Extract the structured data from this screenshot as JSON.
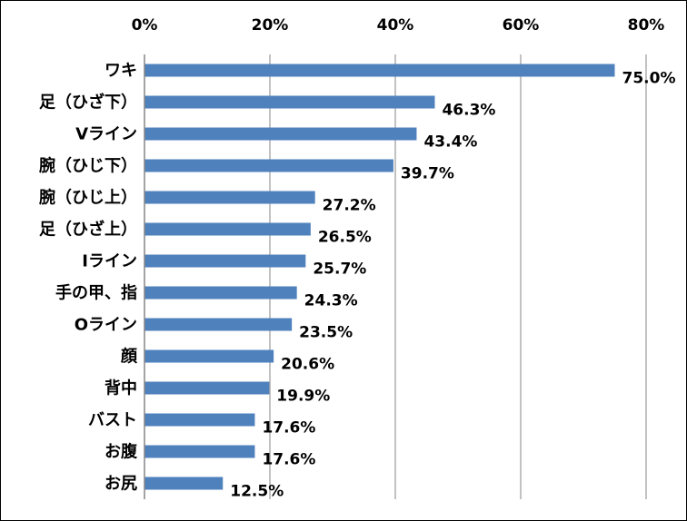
{
  "chart_data": {
    "type": "bar",
    "orientation": "horizontal",
    "title": "",
    "xlabel": "",
    "ylabel": "",
    "xlim": [
      0,
      80
    ],
    "x_ticks": [
      "0%",
      "20%",
      "40%",
      "60%",
      "80%"
    ],
    "x_tick_values": [
      0,
      20,
      40,
      60,
      80
    ],
    "axis_position": "top",
    "grid": true,
    "legend": "none",
    "bar_color": "#4F81BD",
    "categories": [
      "ワキ",
      "足（ひざ下）",
      "Vライン",
      "腕（ひじ下）",
      "腕（ひじ上）",
      "足（ひざ上）",
      "Iライン",
      "手の甲、指",
      "Oライン",
      "顔",
      "背中",
      "バスト",
      "お腹",
      "お尻"
    ],
    "values": [
      75.0,
      46.3,
      43.4,
      39.7,
      27.2,
      26.5,
      25.7,
      24.3,
      23.5,
      20.6,
      19.9,
      17.6,
      17.6,
      12.5
    ],
    "value_labels": [
      "75.0%",
      "46.3%",
      "43.4%",
      "39.7%",
      "27.2%",
      "26.5%",
      "25.7%",
      "24.3%",
      "23.5%",
      "20.6%",
      "19.9%",
      "17.6%",
      "17.6%",
      "12.5%"
    ]
  }
}
